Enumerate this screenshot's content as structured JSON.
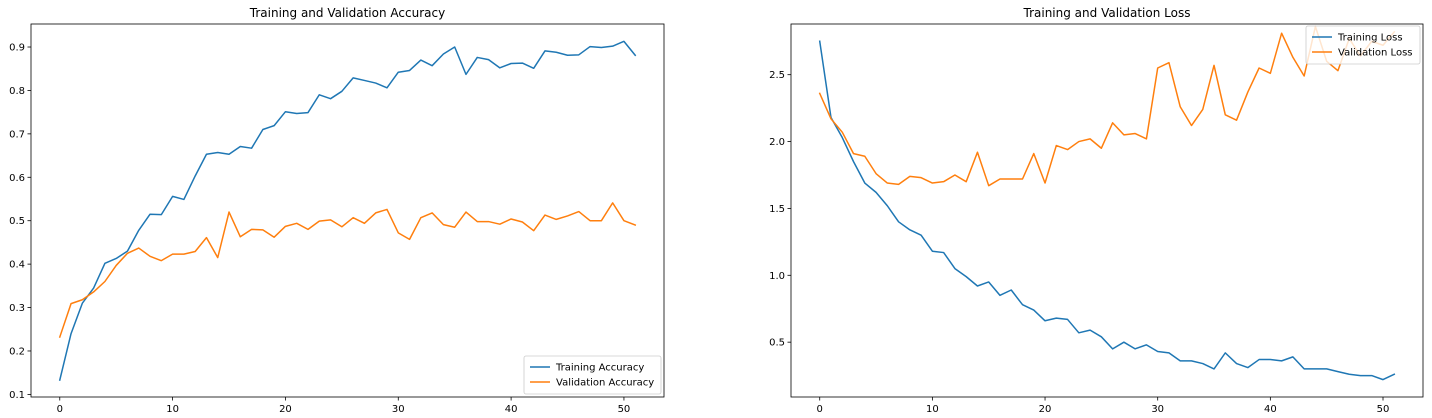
{
  "chart_data": [
    {
      "type": "line",
      "title": "Training and Validation Accuracy",
      "xlabel": "",
      "ylabel": "",
      "xlim": [
        -2.55,
        53.55
      ],
      "ylim": [
        0.094,
        0.953
      ],
      "xticks": [
        "0",
        "10",
        "20",
        "30",
        "40",
        "50"
      ],
      "xtick_values": [
        0,
        10,
        20,
        30,
        40,
        50
      ],
      "yticks": [
        "0.1",
        "0.2",
        "0.3",
        "0.4",
        "0.5",
        "0.6",
        "0.7",
        "0.8",
        "0.9"
      ],
      "ytick_values": [
        0.1,
        0.2,
        0.3,
        0.4,
        0.5,
        0.6,
        0.7,
        0.8,
        0.9
      ],
      "grid": false,
      "legend_position": "lower right",
      "x": [
        0,
        1,
        2,
        3,
        4,
        5,
        6,
        7,
        8,
        9,
        10,
        11,
        12,
        13,
        14,
        15,
        16,
        17,
        18,
        19,
        20,
        21,
        22,
        23,
        24,
        25,
        26,
        27,
        28,
        29,
        30,
        31,
        32,
        33,
        34,
        35,
        36,
        37,
        38,
        39,
        40,
        41,
        42,
        43,
        44,
        45,
        46,
        47,
        48,
        49,
        50,
        51
      ],
      "series": [
        {
          "name": "Training Accuracy",
          "color": "#1f77b4",
          "values": [
            0.133,
            0.24,
            0.31,
            0.345,
            0.402,
            0.413,
            0.43,
            0.478,
            0.515,
            0.514,
            0.556,
            0.549,
            0.603,
            0.653,
            0.657,
            0.653,
            0.671,
            0.667,
            0.71,
            0.719,
            0.751,
            0.747,
            0.749,
            0.79,
            0.781,
            0.798,
            0.829,
            0.823,
            0.817,
            0.806,
            0.842,
            0.846,
            0.87,
            0.857,
            0.884,
            0.9,
            0.837,
            0.876,
            0.871,
            0.852,
            0.862,
            0.863,
            0.851,
            0.891,
            0.888,
            0.881,
            0.882,
            0.901,
            0.899,
            0.902,
            0.913,
            0.881
          ]
        },
        {
          "name": "Validation Accuracy",
          "color": "#ff7f0e",
          "values": [
            0.232,
            0.309,
            0.318,
            0.336,
            0.36,
            0.397,
            0.425,
            0.437,
            0.418,
            0.408,
            0.423,
            0.423,
            0.429,
            0.461,
            0.415,
            0.52,
            0.463,
            0.48,
            0.479,
            0.462,
            0.487,
            0.494,
            0.48,
            0.499,
            0.502,
            0.486,
            0.507,
            0.494,
            0.518,
            0.526,
            0.472,
            0.457,
            0.507,
            0.518,
            0.491,
            0.485,
            0.52,
            0.498,
            0.498,
            0.492,
            0.504,
            0.497,
            0.477,
            0.513,
            0.503,
            0.511,
            0.521,
            0.5,
            0.5,
            0.541,
            0.5,
            0.49
          ]
        }
      ]
    },
    {
      "type": "line",
      "title": "Training and Validation Loss",
      "xlabel": "",
      "ylabel": "",
      "xlim": [
        -2.55,
        53.55
      ],
      "ylim": [
        0.09,
        2.879
      ],
      "xticks": [
        "0",
        "10",
        "20",
        "30",
        "40",
        "50"
      ],
      "xtick_values": [
        0,
        10,
        20,
        30,
        40,
        50
      ],
      "yticks": [
        "0.5",
        "1.0",
        "1.5",
        "2.0",
        "2.5"
      ],
      "ytick_values": [
        0.5,
        1.0,
        1.5,
        2.0,
        2.5
      ],
      "grid": false,
      "legend_position": "upper right",
      "x": [
        0,
        1,
        2,
        3,
        4,
        5,
        6,
        7,
        8,
        9,
        10,
        11,
        12,
        13,
        14,
        15,
        16,
        17,
        18,
        19,
        20,
        21,
        22,
        23,
        24,
        25,
        26,
        27,
        28,
        29,
        30,
        31,
        32,
        33,
        34,
        35,
        36,
        37,
        38,
        39,
        40,
        41,
        42,
        43,
        44,
        45,
        46,
        47,
        48,
        49,
        50,
        51
      ],
      "series": [
        {
          "name": "Training Loss",
          "color": "#1f77b4",
          "values": [
            2.75,
            2.18,
            2.03,
            1.85,
            1.69,
            1.62,
            1.52,
            1.4,
            1.34,
            1.3,
            1.18,
            1.17,
            1.05,
            0.99,
            0.92,
            0.95,
            0.85,
            0.89,
            0.78,
            0.74,
            0.66,
            0.68,
            0.67,
            0.57,
            0.59,
            0.54,
            0.45,
            0.5,
            0.45,
            0.48,
            0.43,
            0.42,
            0.36,
            0.36,
            0.34,
            0.3,
            0.42,
            0.34,
            0.31,
            0.37,
            0.37,
            0.36,
            0.39,
            0.3,
            0.3,
            0.3,
            0.28,
            0.26,
            0.25,
            0.25,
            0.22,
            0.26
          ]
        },
        {
          "name": "Validation Loss",
          "color": "#ff7f0e",
          "values": [
            2.36,
            2.17,
            2.07,
            1.91,
            1.89,
            1.76,
            1.69,
            1.68,
            1.74,
            1.73,
            1.69,
            1.7,
            1.75,
            1.7,
            1.92,
            1.67,
            1.72,
            1.72,
            1.72,
            1.91,
            1.69,
            1.97,
            1.94,
            2.0,
            2.02,
            1.95,
            2.14,
            2.05,
            2.06,
            2.02,
            2.55,
            2.59,
            2.26,
            2.12,
            2.24,
            2.57,
            2.2,
            2.16,
            2.37,
            2.55,
            2.51,
            2.81,
            2.63,
            2.49,
            2.86,
            2.6,
            2.53,
            2.77,
            2.64,
            2.75,
            2.72,
            2.82
          ]
        }
      ]
    }
  ]
}
